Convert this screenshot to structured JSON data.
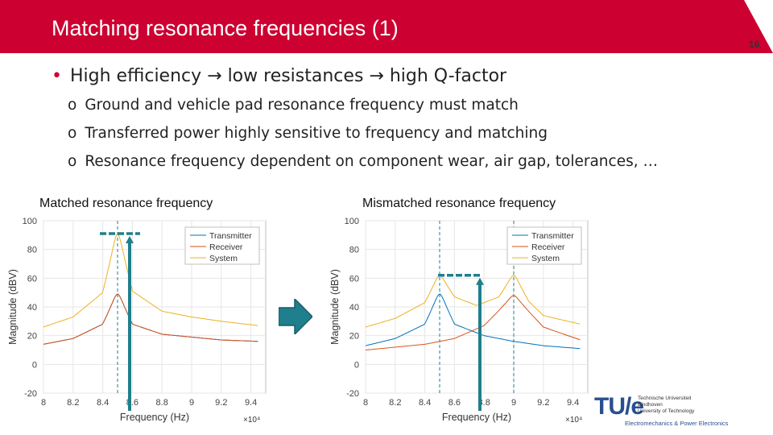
{
  "slide": {
    "title": "Matching resonance frequencies (1)",
    "slide_number": "16",
    "bullet": "High efficiency → low resistances → high Q-factor",
    "sub_bullets": [
      "Ground and vehicle pad resonance frequency must match",
      "Transferred power highly sensitive to frequency and matching",
      "Resonance frequency dependent on component wear, air gap, tolerances, …"
    ],
    "left_plot_title": "Matched resonance frequency",
    "right_plot_title": "Mismatched resonance frequency",
    "logo": {
      "mark": "TU/e",
      "lines": [
        "Technische Universiteit",
        "Eindhoven",
        "University of Technology"
      ],
      "department": "Electromechanics & Power Electronics"
    },
    "colors": {
      "accent": "#cc0031",
      "transmitter": "#0072bd",
      "receiver": "#d95319",
      "system": "#edb120",
      "marker": "#1f7f8c"
    }
  },
  "chart_data": [
    {
      "type": "line",
      "title": "Matched resonance frequency",
      "xlabel": "Frequency (Hz)",
      "ylabel": "Magnitude (dBV)",
      "x_exponent_label": "×10⁴",
      "xlim": [
        8.0,
        9.5
      ],
      "ylim": [
        -20,
        100
      ],
      "xticks": [
        8,
        8.2,
        8.4,
        8.6,
        8.8,
        9,
        9.2,
        9.4
      ],
      "yticks": [
        -20,
        0,
        20,
        40,
        60,
        80,
        100
      ],
      "grid": true,
      "legend_position": "top-right",
      "series": [
        {
          "name": "Transmitter",
          "resonance": 8.5,
          "x": [
            8.0,
            8.2,
            8.4,
            8.5,
            8.6,
            8.8,
            9.0,
            9.2,
            9.45
          ],
          "y": [
            14,
            18,
            28,
            49,
            28,
            21,
            19,
            17,
            16
          ]
        },
        {
          "name": "Receiver",
          "resonance": 8.5,
          "x": [
            8.0,
            8.2,
            8.4,
            8.5,
            8.6,
            8.8,
            9.0,
            9.2,
            9.45
          ],
          "y": [
            14,
            18,
            28,
            49,
            28,
            21,
            19,
            17,
            16
          ]
        },
        {
          "name": "System",
          "resonance": 8.5,
          "x": [
            8.0,
            8.2,
            8.4,
            8.5,
            8.6,
            8.8,
            9.0,
            9.2,
            9.45
          ],
          "y": [
            26,
            33,
            50,
            91,
            51,
            37,
            33,
            30,
            27
          ]
        }
      ],
      "markers": {
        "dashed_vlines": [
          8.5
        ],
        "level_y": 91
      }
    },
    {
      "type": "line",
      "title": "Mismatched resonance frequency",
      "xlabel": "Frequency (Hz)",
      "ylabel": "Magnitude (dBV)",
      "x_exponent_label": "×10⁴",
      "xlim": [
        8.0,
        9.5
      ],
      "ylim": [
        -20,
        100
      ],
      "xticks": [
        8,
        8.2,
        8.4,
        8.6,
        8.8,
        9,
        9.2,
        9.4
      ],
      "yticks": [
        -20,
        0,
        20,
        40,
        60,
        80,
        100
      ],
      "grid": true,
      "legend_position": "top-right",
      "series": [
        {
          "name": "Transmitter",
          "resonance": 8.5,
          "x": [
            8.0,
            8.2,
            8.4,
            8.5,
            8.6,
            8.8,
            9.0,
            9.2,
            9.45
          ],
          "y": [
            13,
            18,
            28,
            49,
            28,
            20,
            16,
            13,
            11
          ]
        },
        {
          "name": "Receiver",
          "resonance": 9.0,
          "x": [
            8.0,
            8.2,
            8.4,
            8.6,
            8.8,
            9.0,
            9.2,
            9.45
          ],
          "y": [
            10,
            12,
            14,
            18,
            27,
            48,
            26,
            17
          ]
        },
        {
          "name": "System",
          "resonance": [
            8.5,
            9.0
          ],
          "x": [
            8.0,
            8.2,
            8.4,
            8.5,
            8.6,
            8.75,
            8.9,
            9.0,
            9.1,
            9.2,
            9.45
          ],
          "y": [
            26,
            32,
            43,
            62,
            47,
            41,
            47,
            62,
            44,
            34,
            28
          ]
        }
      ],
      "markers": {
        "dashed_vlines": [
          8.5,
          9.0
        ],
        "level_y": 62
      }
    }
  ]
}
